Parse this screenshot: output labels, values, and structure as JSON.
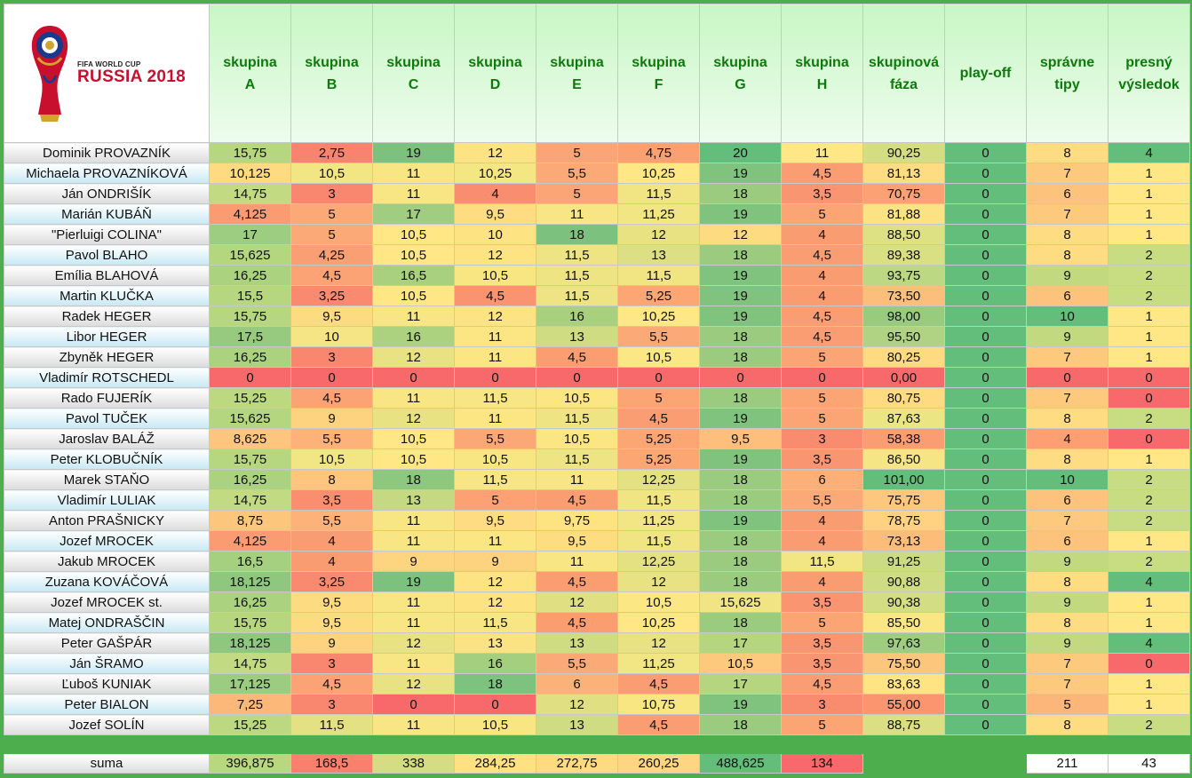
{
  "logo": {
    "line1": "FIFA WORLD CUP",
    "line2": "RUSSIA 2018"
  },
  "headers": [
    "skupina\nA",
    "skupina\nB",
    "skupina\nC",
    "skupina\nD",
    "skupina\nE",
    "skupina\nF",
    "skupina\nG",
    "skupina\nH",
    "skupinová\nfáza",
    "play-off",
    "správne\ntipy",
    "presný\nvýsledok"
  ],
  "rows": [
    {
      "name": "Dominik PROVAZNÍK",
      "values": [
        "15,75",
        "2,75",
        "19",
        "12",
        "5",
        "4,75",
        "20",
        "11",
        "90,25",
        "0",
        "8",
        "4"
      ],
      "colors": [
        "#b6d77f",
        "#f8836e",
        "#7cc27e",
        "#fee383",
        "#fba475",
        "#fba071",
        "#63be7b",
        "#fee784",
        "#d5dd83",
        "#63be7b",
        "#fedc81",
        "#63be7b"
      ]
    },
    {
      "name": "Michaela PROVAZNÍKOVÁ",
      "values": [
        "10,125",
        "10,5",
        "11",
        "10,25",
        "5,5",
        "10,25",
        "19",
        "4,5",
        "81,13",
        "0",
        "7",
        "1"
      ],
      "colors": [
        "#fedb81",
        "#f1e584",
        "#f7e683",
        "#f4e683",
        "#fba976",
        "#fee784",
        "#80c37e",
        "#fb9d72",
        "#fedc81",
        "#63be7b",
        "#fdc97d",
        "#fee784"
      ]
    },
    {
      "name": "Ján ONDRIŠÍK",
      "values": [
        "14,75",
        "3",
        "11",
        "4",
        "5",
        "11,5",
        "18",
        "3,5",
        "70,75",
        "0",
        "6",
        "1"
      ],
      "colors": [
        "#c2da81",
        "#f9866f",
        "#f7e683",
        "#f98d6f",
        "#fba475",
        "#f0e483",
        "#9bcb7f",
        "#fa9571",
        "#fca174",
        "#63be7b",
        "#fdc27b",
        "#fee784"
      ]
    },
    {
      "name": "Marián KUBÁŇ",
      "values": [
        "4,125",
        "5",
        "17",
        "9,5",
        "11",
        "11,25",
        "19",
        "5",
        "81,88",
        "0",
        "7",
        "1"
      ],
      "colors": [
        "#fb9b71",
        "#fbaa77",
        "#a1cd80",
        "#fedc81",
        "#f7e683",
        "#f2e583",
        "#80c37e",
        "#fca574",
        "#fbe383",
        "#63be7b",
        "#fdc97d",
        "#fee784"
      ]
    },
    {
      "name": "\"Pierluigi COLINA\"",
      "values": [
        "17",
        "5",
        "10,5",
        "10",
        "18",
        "12",
        "12",
        "4",
        "88,50",
        "0",
        "8",
        "1"
      ],
      "colors": [
        "#9dcd80",
        "#fbaa77",
        "#fee784",
        "#fee383",
        "#7cc27e",
        "#e8e283",
        "#fddb81",
        "#fa9c71",
        "#dde083",
        "#63be7b",
        "#fedc81",
        "#fee784"
      ]
    },
    {
      "name": "Pavol BLAHO",
      "values": [
        "15,625",
        "4,25",
        "10,5",
        "12",
        "11,5",
        "13",
        "18",
        "4,5",
        "89,38",
        "0",
        "8",
        "2"
      ],
      "colors": [
        "#b3d67f",
        "#fa9f73",
        "#fee784",
        "#fee383",
        "#eee484",
        "#dcdf83",
        "#9bcb7f",
        "#fb9d72",
        "#d9df83",
        "#63be7b",
        "#fedc81",
        "#c8dc81"
      ]
    },
    {
      "name": "Emília BLAHOVÁ",
      "values": [
        "16,25",
        "4,5",
        "16,5",
        "10,5",
        "11,5",
        "11,5",
        "19",
        "4",
        "93,75",
        "0",
        "9",
        "2"
      ],
      "colors": [
        "#aad27f",
        "#fba374",
        "#a9d07f",
        "#f8e683",
        "#eee484",
        "#f0e483",
        "#80c37e",
        "#fa9c71",
        "#bdd882",
        "#63be7b",
        "#c2d980",
        "#c8dc81"
      ]
    },
    {
      "name": "Martin KLUČKA",
      "values": [
        "15,5",
        "3,25",
        "10,5",
        "4,5",
        "11,5",
        "5,25",
        "19",
        "4",
        "73,50",
        "0",
        "6",
        "2"
      ],
      "colors": [
        "#b6d77f",
        "#f98a6f",
        "#fee784",
        "#fa9370",
        "#eee484",
        "#fba673",
        "#80c37e",
        "#fa9c71",
        "#fcbe7b",
        "#63be7b",
        "#fdc27b",
        "#c8dc81"
      ]
    },
    {
      "name": "Radek HEGER",
      "values": [
        "15,75",
        "9,5",
        "11",
        "12",
        "16",
        "10,25",
        "19",
        "4,5",
        "98,00",
        "0",
        "10",
        "1"
      ],
      "colors": [
        "#b6d77f",
        "#fddb81",
        "#f7e683",
        "#fee383",
        "#a9d07f",
        "#fee784",
        "#80c37e",
        "#fb9d72",
        "#99cb7e",
        "#63be7b",
        "#63be7b",
        "#fee784"
      ]
    },
    {
      "name": "Libor HEGER",
      "values": [
        "17,5",
        "10",
        "16",
        "11",
        "13",
        "5,5",
        "18",
        "4,5",
        "95,50",
        "0",
        "9",
        "1"
      ],
      "colors": [
        "#97ca7f",
        "#f5e584",
        "#acd17f",
        "#fbe683",
        "#cfdc82",
        "#fbaa77",
        "#9bcb7f",
        "#fb9d72",
        "#afd382",
        "#63be7b",
        "#c2d980",
        "#fee784"
      ]
    },
    {
      "name": "Zbyněk HEGER",
      "values": [
        "16,25",
        "3",
        "12",
        "11",
        "4,5",
        "10,5",
        "18",
        "5",
        "80,25",
        "0",
        "7",
        "1"
      ],
      "colors": [
        "#aad27f",
        "#f9866f",
        "#e8e283",
        "#fbe683",
        "#fa9e72",
        "#fbe784",
        "#9bcb7f",
        "#fca574",
        "#feda81",
        "#63be7b",
        "#fdc97d",
        "#fee784"
      ]
    },
    {
      "name": "Vladimír ROTSCHEDL",
      "values": [
        "0",
        "0",
        "0",
        "0",
        "0",
        "0",
        "0",
        "0",
        "0,00",
        "0",
        "0",
        "0"
      ],
      "colors": [
        "#f8696b",
        "#f8696b",
        "#f8696b",
        "#f8696b",
        "#f8696b",
        "#f8696b",
        "#f8696b",
        "#f8696b",
        "#f8696b",
        "#63be7b",
        "#f8696b",
        "#f8696b"
      ]
    },
    {
      "name": "Rado FUJERÍK",
      "values": [
        "15,25",
        "4,5",
        "11",
        "11,5",
        "10,5",
        "5",
        "18",
        "5",
        "80,75",
        "0",
        "7",
        "0"
      ],
      "colors": [
        "#bcd880",
        "#fba374",
        "#f7e683",
        "#f7e683",
        "#fbe683",
        "#fba474",
        "#9bcb7f",
        "#fca574",
        "#fedb81",
        "#63be7b",
        "#fdc97d",
        "#f8696b"
      ]
    },
    {
      "name": "Pavol TUČEK",
      "values": [
        "15,625",
        "9",
        "12",
        "11",
        "11,5",
        "4,5",
        "19",
        "5",
        "87,63",
        "0",
        "8",
        "2"
      ],
      "colors": [
        "#b3d67f",
        "#fed380",
        "#e8e283",
        "#fbe683",
        "#eee484",
        "#fb9d72",
        "#80c37e",
        "#fca574",
        "#ebe584",
        "#63be7b",
        "#fedc81",
        "#c8dc81"
      ]
    },
    {
      "name": "Jaroslav BALÁŽ",
      "values": [
        "8,625",
        "5,5",
        "10,5",
        "5,5",
        "10,5",
        "5,25",
        "9,5",
        "3",
        "58,38",
        "0",
        "4",
        "0"
      ],
      "colors": [
        "#fdc57d",
        "#fcb279",
        "#fee784",
        "#fba776",
        "#fbe683",
        "#fba673",
        "#fdbf7b",
        "#f98b6f",
        "#fb9d72",
        "#63be7b",
        "#fd9f73",
        "#f8696b"
      ]
    },
    {
      "name": "Peter KLOBUČNÍK",
      "values": [
        "15,75",
        "10,5",
        "10,5",
        "10,5",
        "11,5",
        "5,25",
        "19",
        "3,5",
        "86,50",
        "0",
        "8",
        "1"
      ],
      "colors": [
        "#b6d77f",
        "#f1e584",
        "#fee784",
        "#f8e683",
        "#eee484",
        "#fba673",
        "#80c37e",
        "#fa9571",
        "#f5e584",
        "#63be7b",
        "#fedc81",
        "#fee784"
      ]
    },
    {
      "name": "Marek STAŇO",
      "values": [
        "16,25",
        "8",
        "18",
        "11,5",
        "11",
        "12,25",
        "18",
        "6",
        "101,00",
        "0",
        "10",
        "2"
      ],
      "colors": [
        "#aad27f",
        "#fdc57d",
        "#8ec77e",
        "#f7e683",
        "#f7e683",
        "#e4e183",
        "#9bcb7f",
        "#fcb078",
        "#63be7b",
        "#63be7b",
        "#63be7b",
        "#c8dc81"
      ]
    },
    {
      "name": "Vladimír LULIAK",
      "values": [
        "14,75",
        "3,5",
        "13",
        "5",
        "4,5",
        "11,5",
        "18",
        "5,5",
        "75,75",
        "0",
        "6",
        "2"
      ],
      "colors": [
        "#c2da81",
        "#fa8f70",
        "#c4d981",
        "#fba174",
        "#fa9e72",
        "#f0e483",
        "#9bcb7f",
        "#fbaa77",
        "#fdc77d",
        "#63be7b",
        "#fdc27b",
        "#c8dc81"
      ]
    },
    {
      "name": "Anton PRAŠNICKY",
      "values": [
        "8,75",
        "5,5",
        "11",
        "9,5",
        "9,75",
        "11,25",
        "19",
        "4",
        "78,75",
        "0",
        "7",
        "2"
      ],
      "colors": [
        "#fdc67d",
        "#fcb279",
        "#f7e683",
        "#fedc81",
        "#fee381",
        "#f2e583",
        "#80c37e",
        "#fa9c71",
        "#fed280",
        "#63be7b",
        "#fdc97d",
        "#c8dc81"
      ]
    },
    {
      "name": "Jozef MROCEK",
      "values": [
        "4,125",
        "4",
        "11",
        "11",
        "9,5",
        "11,5",
        "18",
        "4",
        "73,13",
        "0",
        "6",
        "1"
      ],
      "colors": [
        "#fb9b71",
        "#fa9c72",
        "#f7e683",
        "#fbe683",
        "#fedd81",
        "#f0e483",
        "#9bcb7f",
        "#fa9c71",
        "#fcbd7b",
        "#63be7b",
        "#fdc27b",
        "#fee784"
      ]
    },
    {
      "name": "Jakub MROCEK",
      "values": [
        "16,5",
        "4",
        "9",
        "9",
        "11",
        "12,25",
        "18",
        "11,5",
        "91,25",
        "0",
        "9",
        "2"
      ],
      "colors": [
        "#a5d07f",
        "#fa9c72",
        "#fdd580",
        "#fed380",
        "#f7e683",
        "#e4e183",
        "#9bcb7f",
        "#f2e584",
        "#cbdb83",
        "#63be7b",
        "#c2d980",
        "#c8dc81"
      ]
    },
    {
      "name": "Zuzana KOVÁČOVÁ",
      "values": [
        "18,125",
        "3,25",
        "19",
        "12",
        "4,5",
        "12",
        "18",
        "4",
        "90,88",
        "0",
        "8",
        "4"
      ],
      "colors": [
        "#8fc77e",
        "#f98a6f",
        "#7cc27e",
        "#fee383",
        "#fa9e72",
        "#e8e283",
        "#9bcb7f",
        "#fa9c71",
        "#cfdc83",
        "#63be7b",
        "#fedc81",
        "#63be7b"
      ]
    },
    {
      "name": "Jozef MROCEK st.",
      "values": [
        "16,25",
        "9,5",
        "11",
        "12",
        "12",
        "10,5",
        "15,625",
        "3,5",
        "90,38",
        "0",
        "9",
        "1"
      ],
      "colors": [
        "#aad27f",
        "#fddb81",
        "#f7e683",
        "#fee383",
        "#e0e083",
        "#fbe784",
        "#f0e484",
        "#fa9571",
        "#d3dd83",
        "#63be7b",
        "#c2d980",
        "#fee784"
      ]
    },
    {
      "name": "Matej ONDRAŠČIN",
      "values": [
        "15,75",
        "9,5",
        "11",
        "11,5",
        "4,5",
        "10,25",
        "18",
        "5",
        "85,50",
        "0",
        "8",
        "1"
      ],
      "colors": [
        "#b6d77f",
        "#fddb81",
        "#f7e683",
        "#f7e683",
        "#fa9e72",
        "#fee784",
        "#9bcb7f",
        "#fca574",
        "#fae783",
        "#63be7b",
        "#fedc81",
        "#fee784"
      ]
    },
    {
      "name": "Peter GAŠPÁR",
      "values": [
        "18,125",
        "9",
        "12",
        "13",
        "13",
        "12",
        "17",
        "3,5",
        "97,63",
        "0",
        "9",
        "4"
      ],
      "colors": [
        "#8fc77e",
        "#fed380",
        "#e8e283",
        "#fbe383",
        "#cfdc82",
        "#e8e283",
        "#b6d57f",
        "#fa9571",
        "#9fcd80",
        "#63be7b",
        "#c2d980",
        "#63be7b"
      ]
    },
    {
      "name": "Ján ŠRAMO",
      "values": [
        "14,75",
        "3",
        "11",
        "16",
        "5,5",
        "11,25",
        "10,5",
        "3,5",
        "75,50",
        "0",
        "7",
        "0"
      ],
      "colors": [
        "#c2da81",
        "#f9866f",
        "#f7e683",
        "#a4cf7f",
        "#fba976",
        "#f2e583",
        "#fdc97d",
        "#fa9571",
        "#fdc67d",
        "#63be7b",
        "#fdc97d",
        "#f8696b"
      ]
    },
    {
      "name": "Ľuboš KUNIAK",
      "values": [
        "17,125",
        "4,5",
        "12",
        "18",
        "6",
        "4,5",
        "17",
        "4,5",
        "83,63",
        "0",
        "7",
        "1"
      ],
      "colors": [
        "#9bcc80",
        "#fba374",
        "#e8e283",
        "#7dc27e",
        "#fbb278",
        "#fb9d72",
        "#b6d57f",
        "#fb9d72",
        "#fee483",
        "#63be7b",
        "#fdc97d",
        "#fee784"
      ]
    },
    {
      "name": "Peter BIALON",
      "values": [
        "7,25",
        "3",
        "0",
        "0",
        "12",
        "10,75",
        "19",
        "3",
        "55,00",
        "0",
        "5",
        "1"
      ],
      "colors": [
        "#fcb879",
        "#f9866f",
        "#f8696b",
        "#f8696b",
        "#e0e083",
        "#f8e683",
        "#80c37e",
        "#f98b6f",
        "#fb9570",
        "#63be7b",
        "#fcb679",
        "#fee784"
      ]
    },
    {
      "name": "Jozef SOLÍN",
      "values": [
        "15,25",
        "11,5",
        "11",
        "10,5",
        "13",
        "4,5",
        "18",
        "5",
        "88,75",
        "0",
        "8",
        "2"
      ],
      "colors": [
        "#bcd880",
        "#e4e183",
        "#f7e683",
        "#f8e683",
        "#cfdc82",
        "#fb9d72",
        "#9bcb7f",
        "#fca574",
        "#dbdf83",
        "#63be7b",
        "#fedc81",
        "#c8dc81"
      ]
    }
  ],
  "sum": {
    "label": "suma",
    "values": [
      "396,875",
      "168,5",
      "338",
      "284,25",
      "272,75",
      "260,25",
      "488,625",
      "134",
      "",
      "",
      "211",
      "43"
    ],
    "colors": [
      "#b8d77f",
      "#f8806c",
      "#d5dd82",
      "#fee183",
      "#fedb81",
      "#fed580",
      "#63be7b",
      "#f8696b",
      "",
      "",
      "#ffffff",
      "#ffffff"
    ]
  }
}
